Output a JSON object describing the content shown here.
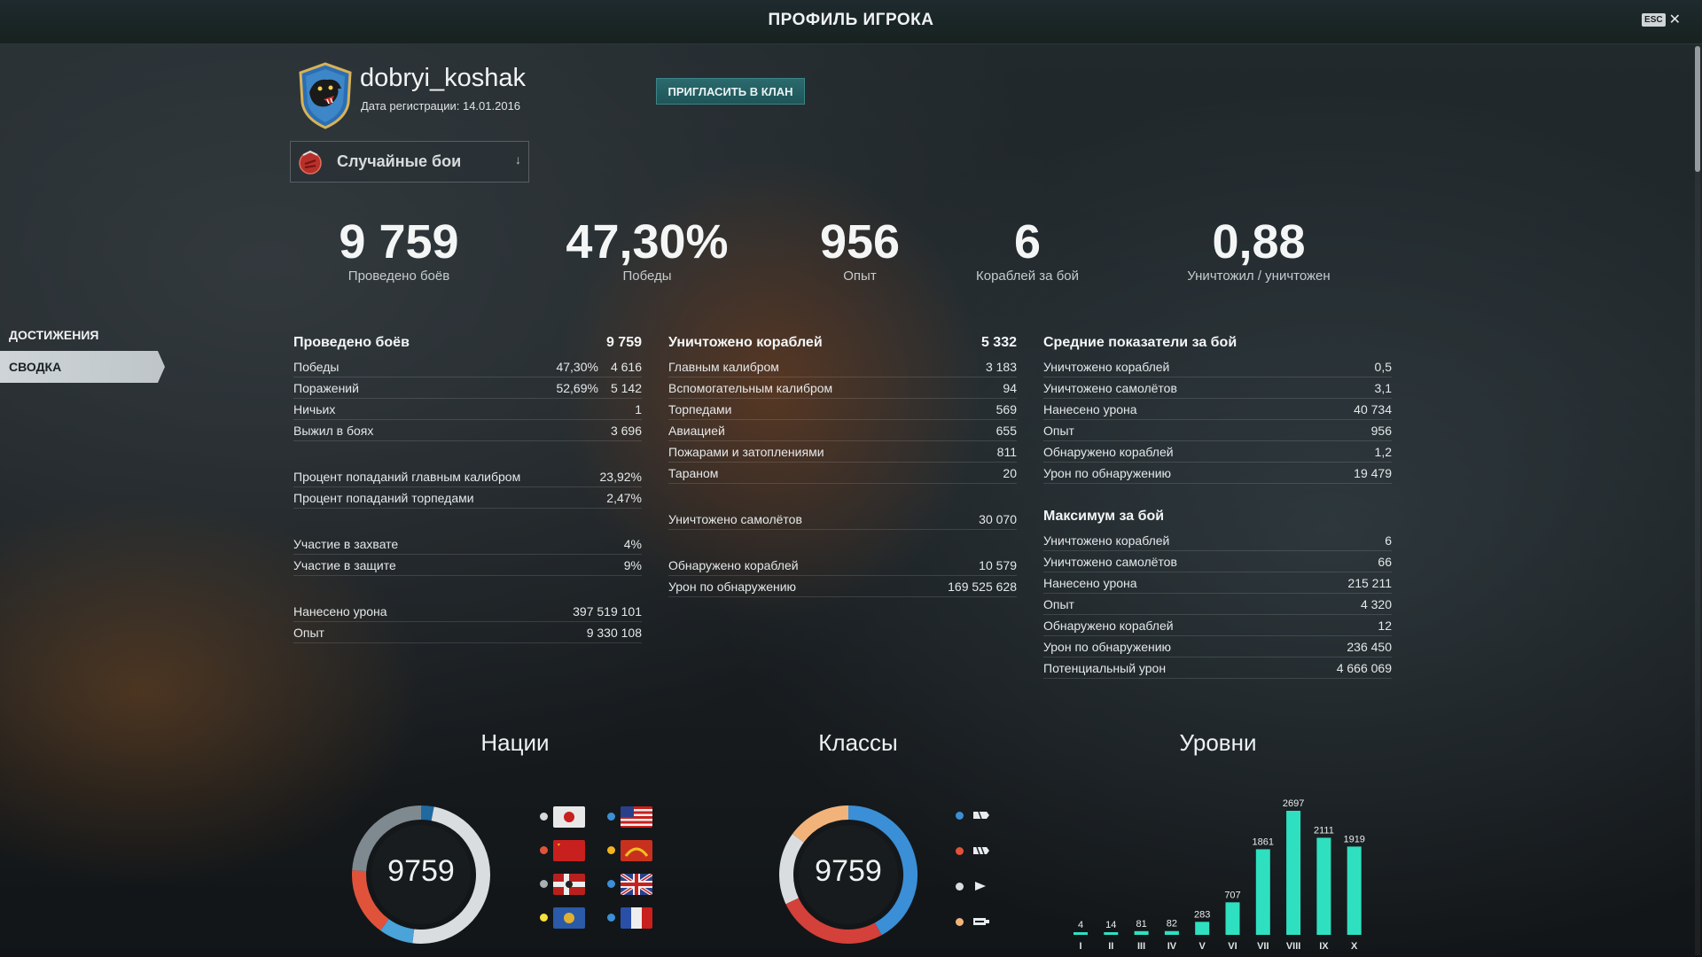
{
  "window": {
    "title": "ПРОФИЛЬ ИГРОКА",
    "esc_label": "ESC",
    "close_glyph": "✕"
  },
  "sidebar": {
    "items": [
      {
        "label": "ДОСТИЖЕНИЯ"
      },
      {
        "label": "СВОДКА",
        "active": true
      }
    ]
  },
  "player": {
    "name": "dobryi_koshak",
    "reg_date": "Дата регистрации: 14.01.2016",
    "invite_label": "ПРИГЛАСИТЬ В КЛАН"
  },
  "mode": {
    "label": "Случайные бои",
    "arrow": "↓"
  },
  "summary": [
    {
      "value": "9 759",
      "label": "Проведено боёв"
    },
    {
      "value": "47,30%",
      "label": "Победы"
    },
    {
      "value": "956",
      "label": "Опыт"
    },
    {
      "value": "6",
      "label": "Кораблей за бой"
    },
    {
      "value": "0,88",
      "label": "Уничтожил / уничтожен"
    }
  ],
  "battles": {
    "title": "Проведено боёв",
    "total": "9 759",
    "rows": [
      {
        "label": "Победы",
        "pct": "47,30%",
        "value": "4 616"
      },
      {
        "label": "Поражений",
        "pct": "52,69%",
        "value": "5 142"
      },
      {
        "label": "Ничьих",
        "pct": "",
        "value": "1"
      },
      {
        "label": "Выжил в боях",
        "pct": "",
        "value": "3 696"
      }
    ],
    "accuracy": [
      {
        "label": "Процент попаданий главным калибром",
        "value": "23,92%"
      },
      {
        "label": "Процент попаданий торпедами",
        "value": "2,47%"
      }
    ],
    "capture": [
      {
        "label": "Участие в захвате",
        "value": "4%"
      },
      {
        "label": "Участие в защите",
        "value": "9%"
      }
    ],
    "totals": [
      {
        "label": "Нанесено урона",
        "value": "397 519 101"
      },
      {
        "label": "Опыт",
        "value": "9 330 108"
      }
    ]
  },
  "destroyed": {
    "title": "Уничтожено кораблей",
    "total": "5 332",
    "rows": [
      {
        "label": "Главным калибром",
        "value": "3 183"
      },
      {
        "label": "Вспомогательным калибром",
        "value": "94"
      },
      {
        "label": "Торпедами",
        "value": "569"
      },
      {
        "label": "Авиацией",
        "value": "655"
      },
      {
        "label": "Пожарами и затоплениями",
        "value": "811"
      },
      {
        "label": "Тараном",
        "value": "20"
      }
    ],
    "planes": {
      "label": "Уничтожено самолётов",
      "value": "30 070"
    },
    "spotting": [
      {
        "label": "Обнаружено кораблей",
        "value": "10 579"
      },
      {
        "label": "Урон по обнаружению",
        "value": "169 525 628"
      }
    ]
  },
  "averages": {
    "title": "Средние показатели за бой",
    "rows": [
      {
        "label": "Уничтожено кораблей",
        "value": "0,5"
      },
      {
        "label": "Уничтожено самолётов",
        "value": "3,1"
      },
      {
        "label": "Нанесено урона",
        "value": "40 734"
      },
      {
        "label": "Опыт",
        "value": "956"
      },
      {
        "label": "Обнаружено кораблей",
        "value": "1,2"
      },
      {
        "label": "Урон по обнаружению",
        "value": "19 479"
      }
    ]
  },
  "maximum": {
    "title": "Максимум за бой",
    "rows": [
      {
        "label": "Уничтожено кораблей",
        "value": "6"
      },
      {
        "label": "Уничтожено самолётов",
        "value": "66"
      },
      {
        "label": "Нанесено урона",
        "value": "215 211"
      },
      {
        "label": "Опыт",
        "value": "4 320"
      },
      {
        "label": "Обнаружено кораблей",
        "value": "12"
      },
      {
        "label": "Урон по обнаружению",
        "value": "236 450"
      },
      {
        "label": "Потенциальный урон",
        "value": "4 666 069"
      }
    ]
  },
  "sections": {
    "nations": "Нации",
    "classes": "Классы",
    "tiers": "Уровни"
  },
  "nations_chart": {
    "total": "9759",
    "legend": [
      {
        "nation": "japan",
        "color": "#d8d8d8"
      },
      {
        "nation": "usa",
        "color": "#3b8fd6"
      },
      {
        "nation": "ussr",
        "color": "#e0533a"
      },
      {
        "nation": "pan-asia",
        "color": "#f2b320"
      },
      {
        "nation": "germany",
        "color": "#a9b0b4"
      },
      {
        "nation": "uk",
        "color": "#3c8fd8"
      },
      {
        "nation": "commonwealth",
        "color": "#f7e13a"
      },
      {
        "nation": "france",
        "color": "#3b8fd6"
      }
    ],
    "segments": [
      {
        "color": "#1f6aa0",
        "fraction": 0.03
      },
      {
        "color": "#d9dde0",
        "fraction": 0.49
      },
      {
        "color": "#4aa3d9",
        "fraction": 0.08
      },
      {
        "color": "#e0533a",
        "fraction": 0.16
      },
      {
        "color": "#7f8a90",
        "fraction": 0.24
      }
    ]
  },
  "classes_chart": {
    "total": "9759",
    "legend": [
      {
        "class": "destroyer-icon",
        "color": "#3b8fd6"
      },
      {
        "class": "cruiser-icon",
        "color": "#e0533a"
      },
      {
        "class": "battleship-icon",
        "color": "#d9dde0"
      },
      {
        "class": "carrier-icon",
        "color": "#f2b37a"
      }
    ],
    "segments": [
      {
        "color": "#3b8fd6",
        "fraction": 0.42
      },
      {
        "color": "#d4403a",
        "fraction": 0.26
      },
      {
        "color": "#d9dde0",
        "fraction": 0.17
      },
      {
        "color": "#f2b37a",
        "fraction": 0.15
      }
    ]
  },
  "chart_data": {
    "type": "bar",
    "title": "Уровни",
    "categories": [
      "I",
      "II",
      "III",
      "IV",
      "V",
      "VI",
      "VII",
      "VIII",
      "IX",
      "X"
    ],
    "values": [
      4,
      14,
      81,
      82,
      283,
      707,
      1861,
      2697,
      2111,
      1919
    ],
    "value_labels": [
      "4",
      "14",
      "81",
      "82",
      "283",
      "707",
      "1861",
      "2697",
      "2111",
      "1919"
    ],
    "bar_color": "#2fe0c0",
    "ylim": [
      0,
      2697
    ]
  }
}
